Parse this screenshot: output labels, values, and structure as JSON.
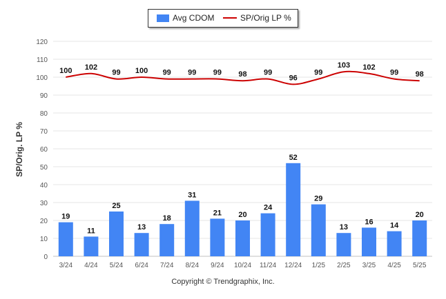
{
  "legend": {
    "bar_label": "Avg CDOM",
    "line_label": "SP/Orig LP %"
  },
  "copyright": "Copyright © Trendgraphix, Inc.",
  "colors": {
    "bar": "#4285f4",
    "line": "#cc0000",
    "grid": "#e5e5e5",
    "axis_text": "#555555"
  },
  "chart_data": {
    "type": "bar",
    "title": "",
    "ylabel": "SP/Orig. LP %",
    "xlabel": "",
    "ylim": [
      0,
      120
    ],
    "yticks": [
      0,
      10,
      20,
      30,
      40,
      50,
      60,
      70,
      80,
      90,
      100,
      110,
      120
    ],
    "grid": true,
    "legend_position": "top-center",
    "categories": [
      "3/24",
      "4/24",
      "5/24",
      "6/24",
      "7/24",
      "8/24",
      "9/24",
      "10/24",
      "11/24",
      "12/24",
      "1/25",
      "2/25",
      "3/25",
      "4/25",
      "5/25"
    ],
    "series": [
      {
        "name": "Avg CDOM",
        "kind": "bar",
        "values": [
          19,
          11,
          25,
          13,
          18,
          31,
          21,
          20,
          24,
          52,
          29,
          13,
          16,
          14,
          20
        ]
      },
      {
        "name": "SP/Orig LP %",
        "kind": "line",
        "values": [
          100,
          102,
          99,
          100,
          99,
          99,
          99,
          98,
          99,
          96,
          99,
          103,
          102,
          99,
          98
        ]
      }
    ]
  }
}
